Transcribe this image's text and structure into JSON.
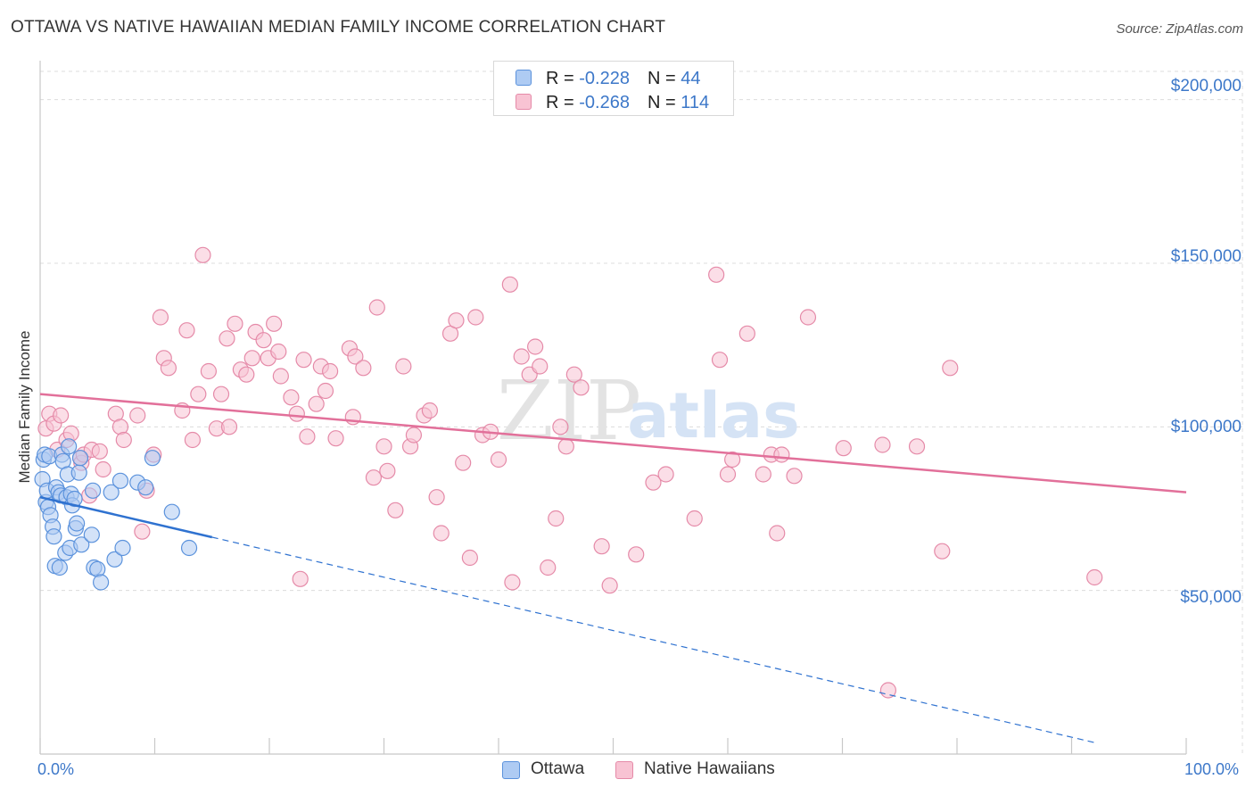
{
  "header": {
    "title": "OTTAWA VS NATIVE HAWAIIAN MEDIAN FAMILY INCOME CORRELATION CHART",
    "source": "Source: ZipAtlas.com"
  },
  "watermark": {
    "zip": "ZIP",
    "atlas": "atlas"
  },
  "legend_top": {
    "rows": [
      {
        "r_label": "R = ",
        "r_value": "-0.228",
        "n_label": "N = ",
        "n_value": "44"
      },
      {
        "r_label": "R = ",
        "r_value": "-0.268",
        "n_label": "N = ",
        "n_value": "114"
      }
    ]
  },
  "legend_bottom": {
    "items": [
      "Ottawa",
      "Native Hawaiians"
    ]
  },
  "colors": {
    "ottawa_fill": "#aecbf3",
    "ottawa_stroke": "#5b92dc",
    "ottawa_line": "#2f72d0",
    "hawaiian_fill": "#f8c3d3",
    "hawaiian_stroke": "#e58aa8",
    "hawaiian_line": "#e2709a",
    "axis_text": "#3d78c9",
    "grid": "#dcdcdc"
  },
  "chart_data": {
    "type": "scatter",
    "title": "OTTAWA VS NATIVE HAWAIIAN MEDIAN FAMILY INCOME CORRELATION CHART",
    "xlabel": "",
    "ylabel": "Median Family Income",
    "xlim": [
      0,
      100
    ],
    "ylim": [
      0,
      210000
    ],
    "x_tick_labels": [
      "0.0%",
      "100.0%"
    ],
    "y_ticks": [
      50000,
      100000,
      150000,
      200000
    ],
    "y_tick_labels": [
      "$50,000",
      "$100,000",
      "$150,000",
      "$200,000"
    ],
    "series": [
      {
        "name": "Ottawa",
        "r": -0.228,
        "n": 44,
        "trend": {
          "x0": 0,
          "y0": 78500,
          "x1": 100,
          "y1": -3000,
          "solid_until_x": 15
        },
        "points": [
          [
            0.2,
            84000
          ],
          [
            0.3,
            90000
          ],
          [
            0.4,
            91500
          ],
          [
            0.5,
            77000
          ],
          [
            0.6,
            80500
          ],
          [
            0.7,
            75500
          ],
          [
            0.8,
            91000
          ],
          [
            0.9,
            73000
          ],
          [
            1.1,
            69500
          ],
          [
            1.2,
            66500
          ],
          [
            1.3,
            57500
          ],
          [
            1.4,
            81500
          ],
          [
            1.6,
            80000
          ],
          [
            1.7,
            57000
          ],
          [
            1.8,
            79000
          ],
          [
            1.9,
            91500
          ],
          [
            2.0,
            89500
          ],
          [
            2.2,
            61500
          ],
          [
            2.3,
            78500
          ],
          [
            2.4,
            85500
          ],
          [
            2.5,
            94000
          ],
          [
            2.6,
            63000
          ],
          [
            2.7,
            79500
          ],
          [
            2.8,
            76000
          ],
          [
            3.0,
            78000
          ],
          [
            3.1,
            69000
          ],
          [
            3.2,
            70500
          ],
          [
            3.4,
            86000
          ],
          [
            3.5,
            90500
          ],
          [
            3.6,
            64000
          ],
          [
            4.5,
            67000
          ],
          [
            4.6,
            80500
          ],
          [
            4.7,
            57000
          ],
          [
            5.0,
            56500
          ],
          [
            5.3,
            52500
          ],
          [
            6.2,
            80000
          ],
          [
            6.5,
            59500
          ],
          [
            7.0,
            83500
          ],
          [
            7.2,
            63000
          ],
          [
            8.5,
            83000
          ],
          [
            9.2,
            81500
          ],
          [
            9.8,
            90500
          ],
          [
            11.5,
            74000
          ],
          [
            13.0,
            63000
          ]
        ]
      },
      {
        "name": "Native Hawaiians",
        "r": -0.268,
        "n": 114,
        "trend": {
          "x0": 0,
          "y0": 110000,
          "x1": 100,
          "y1": 80000
        },
        "points": [
          [
            0.5,
            99500
          ],
          [
            0.8,
            104000
          ],
          [
            1.2,
            101000
          ],
          [
            1.5,
            93000
          ],
          [
            1.8,
            103500
          ],
          [
            2.3,
            96000
          ],
          [
            2.7,
            98000
          ],
          [
            3.5,
            90500
          ],
          [
            3.6,
            89000
          ],
          [
            3.8,
            91500
          ],
          [
            4.3,
            79000
          ],
          [
            4.5,
            93000
          ],
          [
            5.2,
            92500
          ],
          [
            5.5,
            87000
          ],
          [
            6.6,
            104000
          ],
          [
            7.0,
            100000
          ],
          [
            7.3,
            96000
          ],
          [
            8.5,
            103500
          ],
          [
            8.9,
            68000
          ],
          [
            9.3,
            80500
          ],
          [
            9.9,
            91500
          ],
          [
            10.5,
            133500
          ],
          [
            10.8,
            121000
          ],
          [
            11.2,
            118000
          ],
          [
            12.4,
            105000
          ],
          [
            12.8,
            129500
          ],
          [
            13.3,
            96000
          ],
          [
            13.8,
            110000
          ],
          [
            14.2,
            152500
          ],
          [
            14.7,
            117000
          ],
          [
            15.4,
            99500
          ],
          [
            15.8,
            110000
          ],
          [
            16.3,
            127000
          ],
          [
            16.5,
            100000
          ],
          [
            17.0,
            131500
          ],
          [
            17.5,
            117500
          ],
          [
            18.0,
            116000
          ],
          [
            18.5,
            121000
          ],
          [
            18.8,
            129000
          ],
          [
            19.5,
            126500
          ],
          [
            19.9,
            121000
          ],
          [
            20.4,
            131500
          ],
          [
            20.8,
            123000
          ],
          [
            21.0,
            115500
          ],
          [
            21.9,
            109000
          ],
          [
            22.4,
            104000
          ],
          [
            22.7,
            53500
          ],
          [
            23.0,
            120500
          ],
          [
            23.3,
            97000
          ],
          [
            24.1,
            107000
          ],
          [
            24.5,
            118500
          ],
          [
            24.9,
            111000
          ],
          [
            25.3,
            117000
          ],
          [
            25.8,
            96500
          ],
          [
            27.0,
            124000
          ],
          [
            27.3,
            103000
          ],
          [
            27.5,
            121500
          ],
          [
            28.2,
            118000
          ],
          [
            29.1,
            84500
          ],
          [
            29.4,
            136500
          ],
          [
            30.0,
            94000
          ],
          [
            30.3,
            86500
          ],
          [
            31.0,
            74500
          ],
          [
            31.7,
            118500
          ],
          [
            32.3,
            94000
          ],
          [
            32.6,
            97500
          ],
          [
            33.5,
            103500
          ],
          [
            34.0,
            105000
          ],
          [
            34.6,
            78500
          ],
          [
            35.0,
            67500
          ],
          [
            35.8,
            128500
          ],
          [
            36.3,
            132500
          ],
          [
            36.9,
            89000
          ],
          [
            37.5,
            60000
          ],
          [
            38.0,
            133500
          ],
          [
            38.6,
            97500
          ],
          [
            39.3,
            98500
          ],
          [
            40.0,
            90000
          ],
          [
            41.0,
            143500
          ],
          [
            41.2,
            52500
          ],
          [
            42.0,
            121500
          ],
          [
            42.7,
            116000
          ],
          [
            43.2,
            124500
          ],
          [
            43.6,
            118500
          ],
          [
            44.3,
            57000
          ],
          [
            45.0,
            72000
          ],
          [
            45.4,
            100000
          ],
          [
            45.9,
            94000
          ],
          [
            46.6,
            116000
          ],
          [
            47.2,
            112000
          ],
          [
            49.0,
            63500
          ],
          [
            49.7,
            51500
          ],
          [
            52.0,
            61000
          ],
          [
            53.5,
            83000
          ],
          [
            54.6,
            85500
          ],
          [
            57.1,
            72000
          ],
          [
            59.0,
            146500
          ],
          [
            59.3,
            120500
          ],
          [
            60.0,
            85500
          ],
          [
            60.4,
            90000
          ],
          [
            61.7,
            128500
          ],
          [
            63.1,
            85500
          ],
          [
            63.8,
            91500
          ],
          [
            64.3,
            67500
          ],
          [
            64.7,
            91500
          ],
          [
            65.8,
            85000
          ],
          [
            67.0,
            133500
          ],
          [
            70.1,
            93500
          ],
          [
            73.5,
            94500
          ],
          [
            76.5,
            94000
          ],
          [
            78.7,
            62000
          ],
          [
            79.4,
            118000
          ],
          [
            92.0,
            54000
          ],
          [
            74.0,
            19500
          ]
        ]
      }
    ]
  }
}
